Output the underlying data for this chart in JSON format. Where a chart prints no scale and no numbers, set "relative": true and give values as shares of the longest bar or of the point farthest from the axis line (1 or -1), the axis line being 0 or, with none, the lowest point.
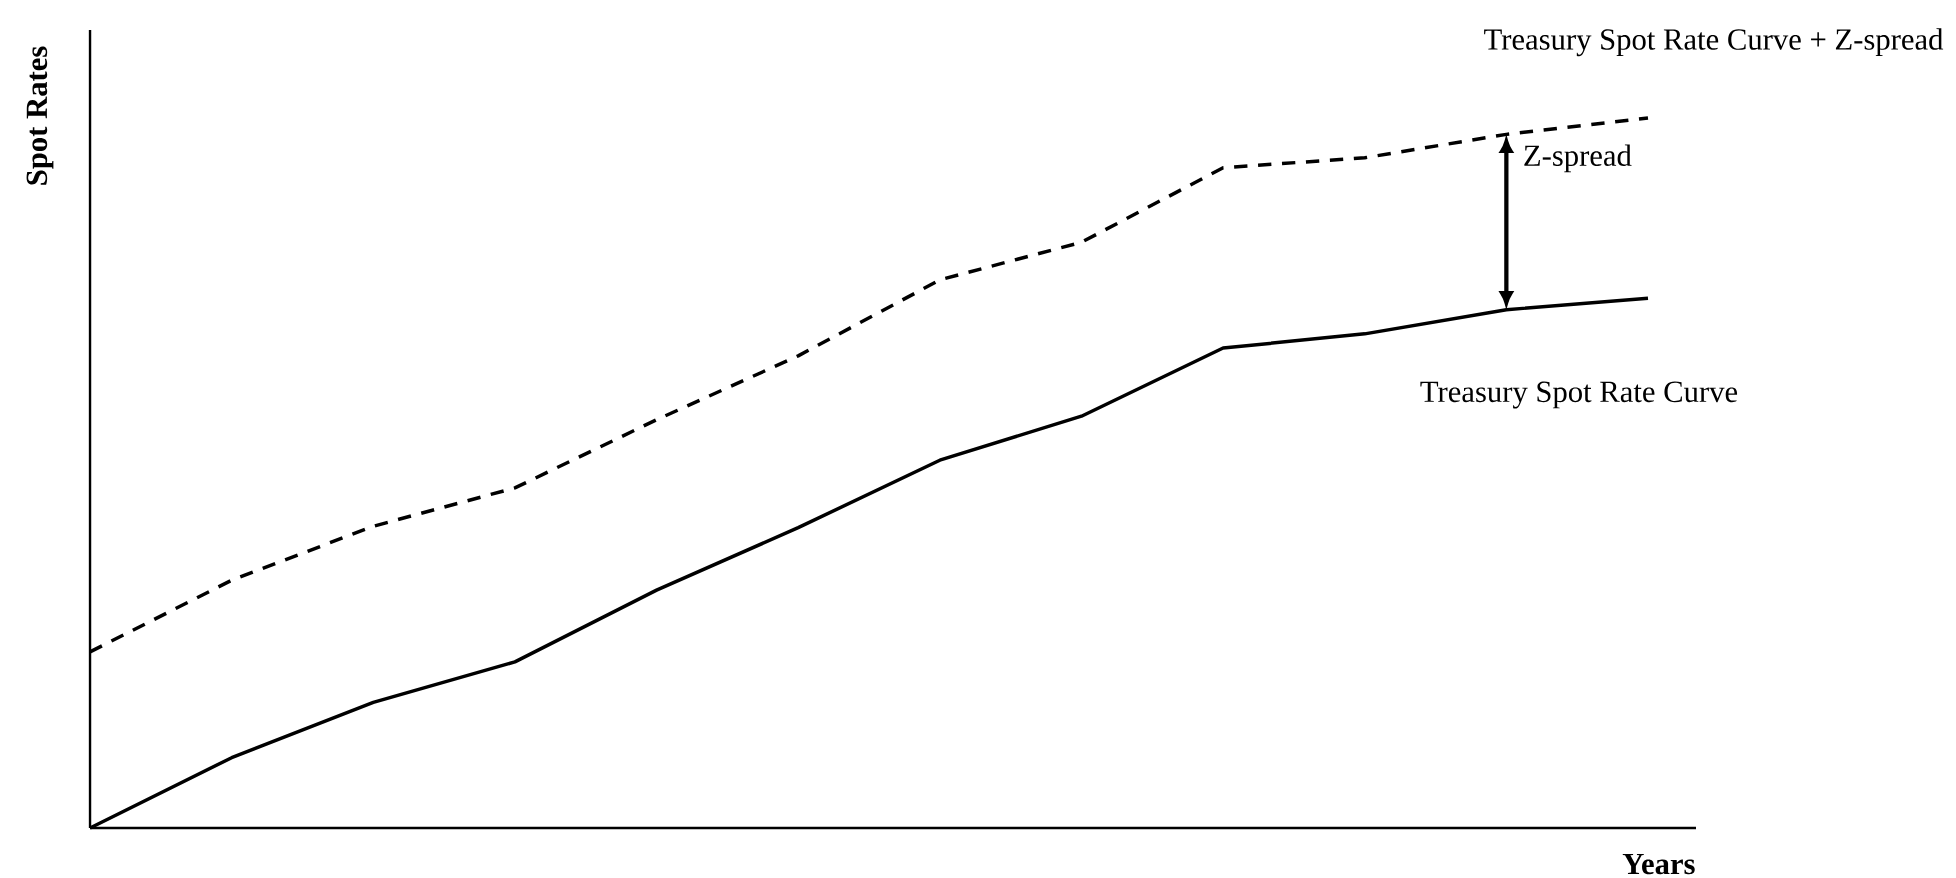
{
  "chart_data": {
    "type": "line",
    "relative": true,
    "xlabel": "Years",
    "ylabel": "Spot Rates",
    "categories": [
      null,
      null,
      null,
      null,
      null,
      null,
      null,
      null,
      null,
      null,
      null,
      null
    ],
    "series": [
      {
        "name": "Treasury Spot Rate Curve",
        "color": "#000000",
        "line_style": "solid",
        "values": [
          0,
          0.099,
          0.177,
          0.234,
          0.335,
          0.423,
          0.518,
          0.58,
          0.676,
          0.696,
          0.73,
          0.746
        ]
      },
      {
        "name": "Treasury Spot Rate Curve + Z-spread",
        "color": "#000000",
        "line_style": "dashed",
        "values": [
          0.248,
          0.349,
          0.425,
          0.479,
          0.575,
          0.665,
          0.772,
          0.825,
          0.93,
          0.944,
          0.977,
          1
        ]
      }
    ],
    "annotations": [
      "Z-spread"
    ]
  }
}
